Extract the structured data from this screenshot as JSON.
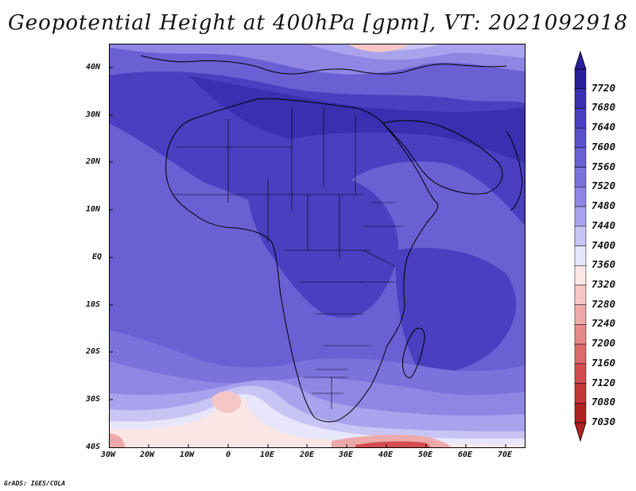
{
  "title": "Geopotential Height at 400hPa [gpm], VT: 2021092918",
  "axes": {
    "lat_labels": [
      "40N",
      "30N",
      "20N",
      "10N",
      "EQ",
      "10S",
      "20S",
      "30S",
      "40S"
    ],
    "lon_labels": [
      "30W",
      "20W",
      "10W",
      "0",
      "10E",
      "20E",
      "30E",
      "40E",
      "50E",
      "60E",
      "70E"
    ]
  },
  "colorbar": {
    "levels": [
      "7720",
      "7680",
      "7640",
      "7600",
      "7560",
      "7520",
      "7480",
      "7440",
      "7400",
      "7360",
      "7320",
      "7280",
      "7240",
      "7200",
      "7160",
      "7120",
      "7080",
      "7030"
    ],
    "colors": [
      "#2a1e9a",
      "#3a2fb0",
      "#4a3fc0",
      "#5a50cc",
      "#6a60d4",
      "#7b72dc",
      "#8f86e4",
      "#a9a2ec",
      "#c8c4f4",
      "#e8e6fa",
      "#fbe6e6",
      "#f4c6c6",
      "#eeaaaa",
      "#e58a8a",
      "#dc6a6a",
      "#d24e4e",
      "#c43636",
      "#b02222"
    ]
  },
  "footer": "GrADS: IGES/COLA"
}
